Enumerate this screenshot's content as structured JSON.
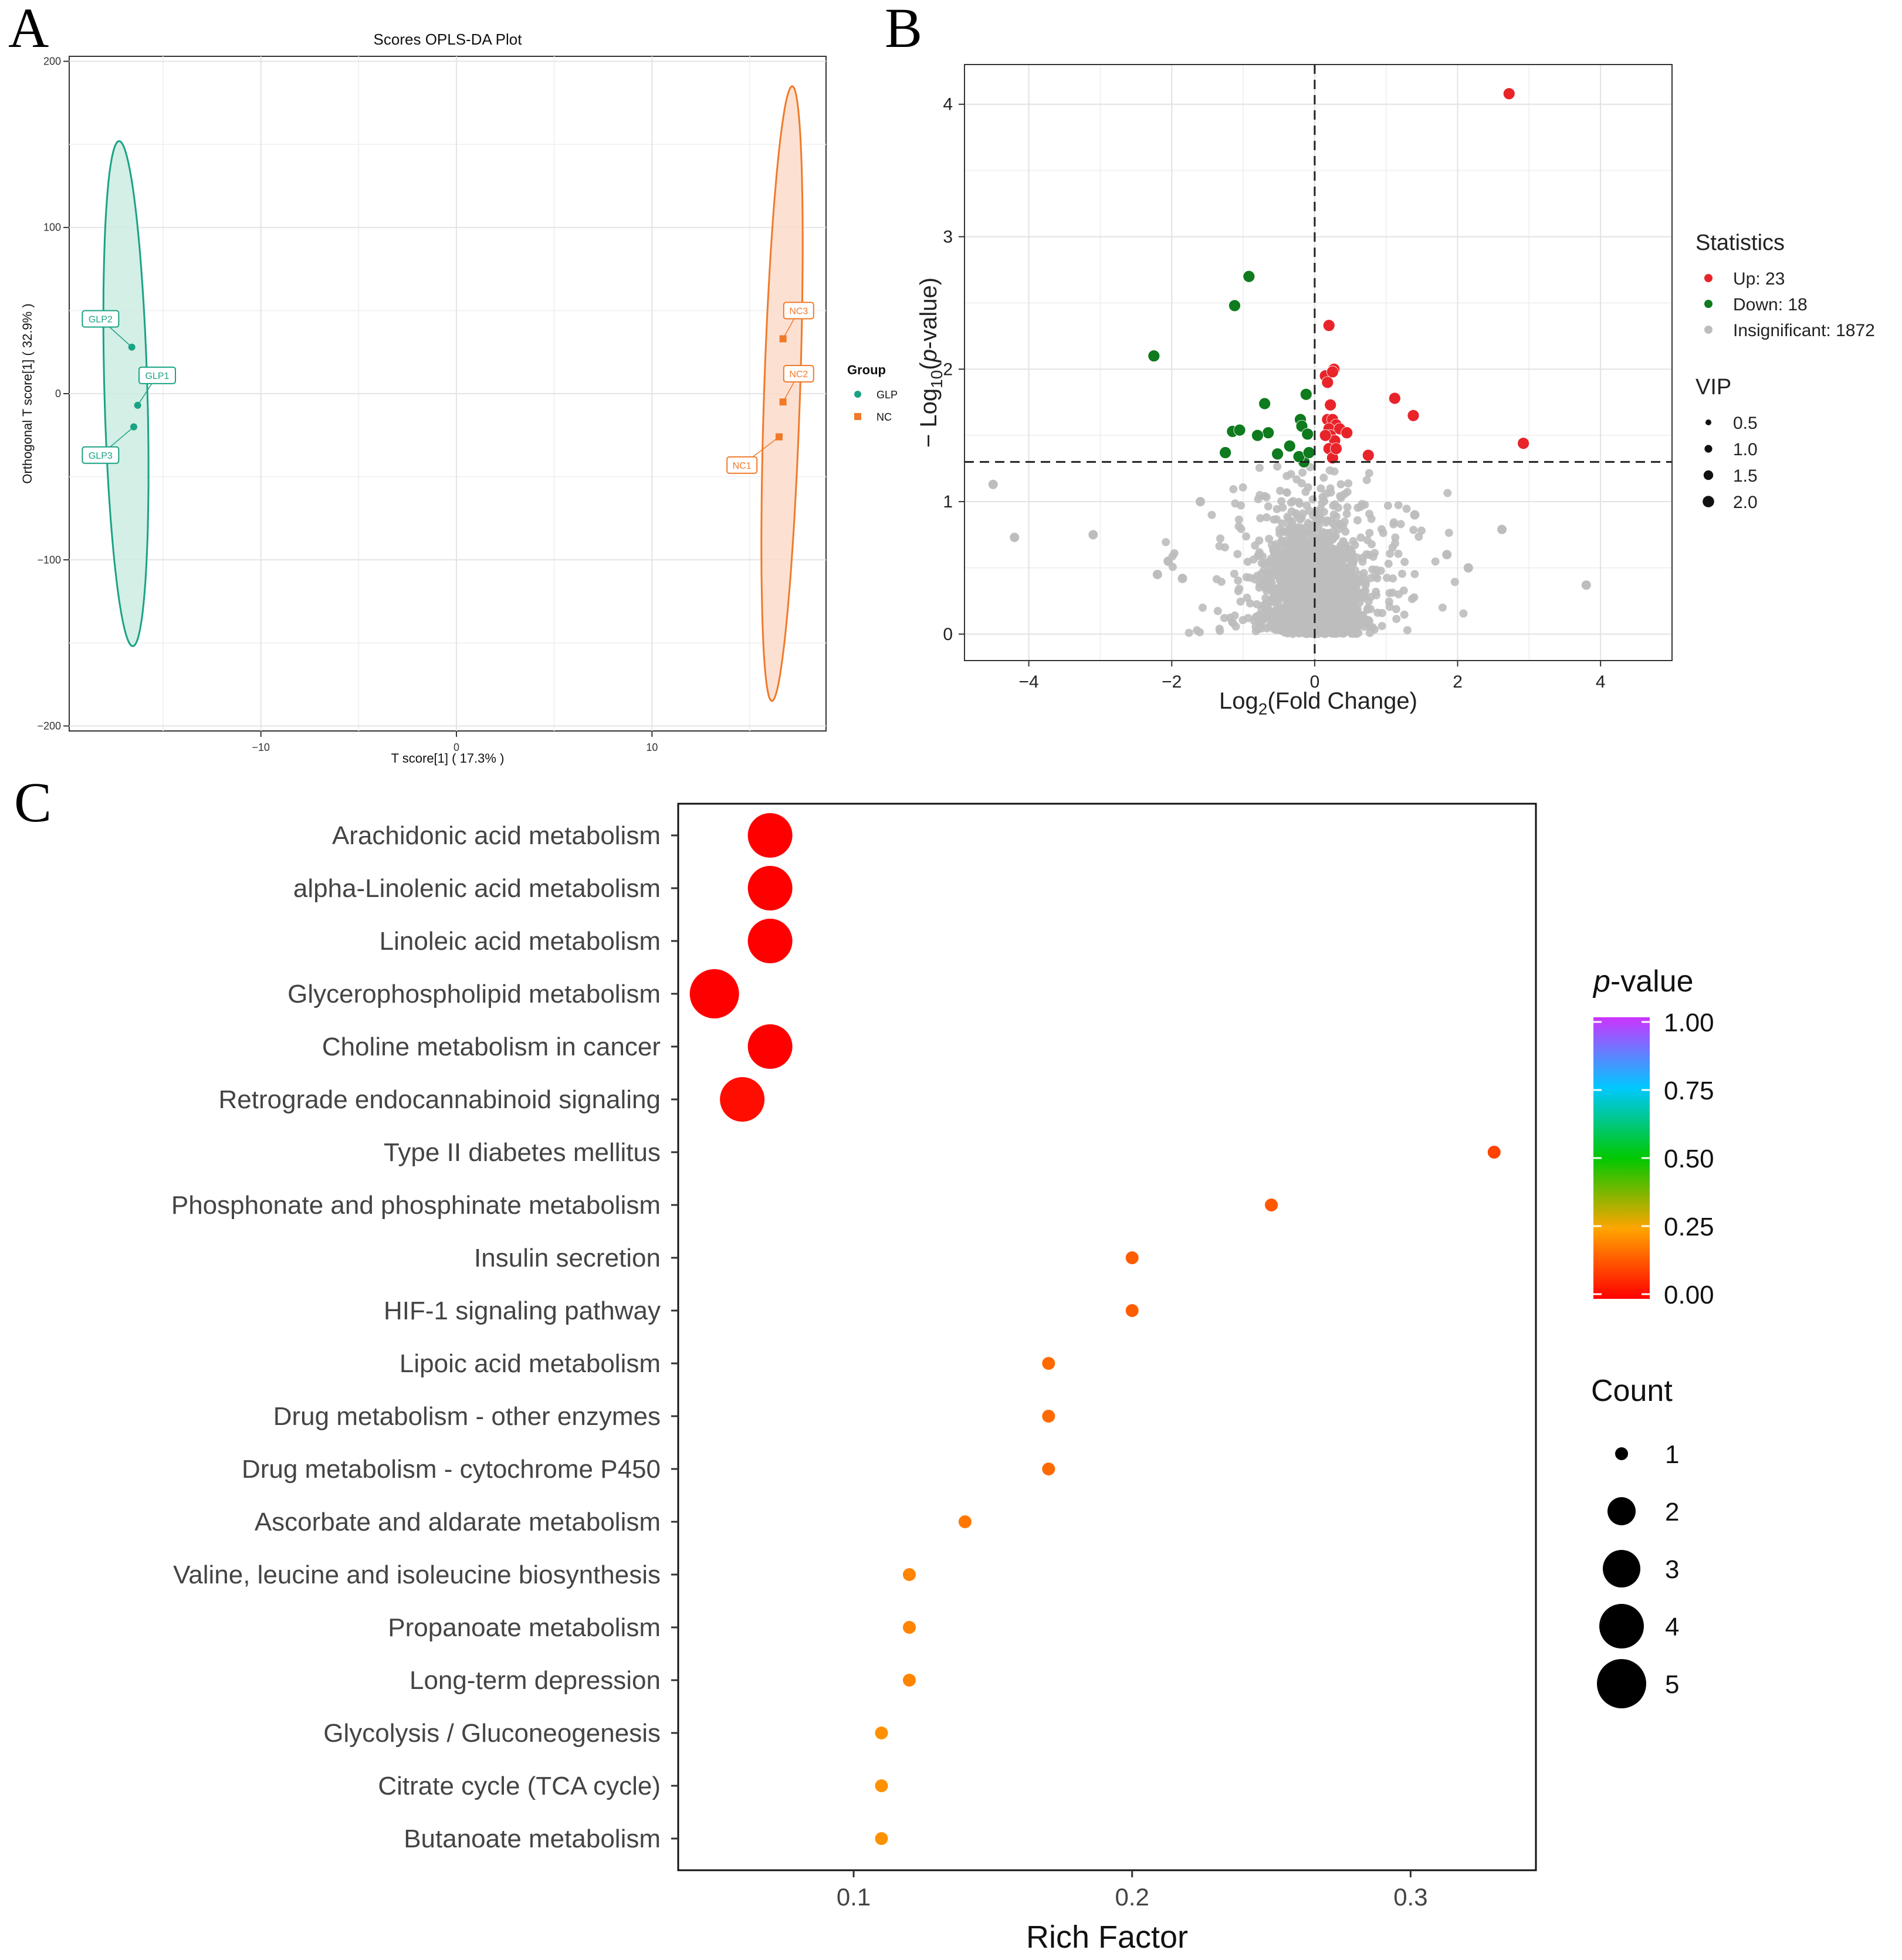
{
  "panels": {
    "a_letter": "A",
    "b_letter": "B",
    "c_letter": "C"
  },
  "chart_data": [
    {
      "type": "scatter",
      "id": "opls",
      "title": "Scores OPLS-DA Plot",
      "xlabel": "T score[1] ( 17.3% )",
      "ylabel": "Orthogonal T score[1] ( 32.9% )",
      "xlim": [
        -19.8,
        18.9
      ],
      "ylim": [
        -203,
        203
      ],
      "xticks": [
        -10,
        0,
        10
      ],
      "yticks": [
        -200,
        -100,
        0,
        100,
        200
      ],
      "xtick_labels": [
        "−10",
        "0",
        "10"
      ],
      "ytick_labels": [
        "−200",
        "−100",
        "0",
        "100",
        "200"
      ],
      "grid": true,
      "legend": {
        "title": "Group",
        "entries": [
          {
            "label": "GLP",
            "color": "#1aa384"
          },
          {
            "label": "NC",
            "color": "#f07a2a"
          }
        ],
        "placement": "right"
      },
      "series": [
        {
          "name": "GLP",
          "color": "#1aa384",
          "fill": "#cdece2",
          "points": [
            {
              "label": "GLP2",
              "x": -16.6,
              "y": 28,
              "lx": -18.2,
              "ly": 45
            },
            {
              "label": "GLP1",
              "x": -16.3,
              "y": -7,
              "lx": -15.3,
              "ly": 11
            },
            {
              "label": "GLP3",
              "x": -16.5,
              "y": -20,
              "lx": -18.2,
              "ly": -37
            }
          ],
          "ellipse": {
            "cx": -16.9,
            "cy": 0,
            "x_half": 1.1,
            "y_half": 152,
            "tilt": -0.0023
          }
        },
        {
          "name": "NC",
          "color": "#f07a2a",
          "fill": "#fbdccb",
          "points": [
            {
              "label": "NC3",
              "x": 16.7,
              "y": 33,
              "lx": 17.5,
              "ly": 50
            },
            {
              "label": "NC2",
              "x": 16.7,
              "y": -5,
              "lx": 17.5,
              "ly": 12
            },
            {
              "label": "NC1",
              "x": 16.5,
              "y": -26,
              "lx": 14.6,
              "ly": -43
            }
          ],
          "ellipse": {
            "cx": 16.65,
            "cy": 0,
            "x_half": 0.92,
            "y_half": 185,
            "tilt": 0.0028
          }
        }
      ]
    },
    {
      "type": "scatter",
      "id": "volcano",
      "title": "",
      "xlabel": "Log2(Fold Change)",
      "ylabel": "− Log10(p-value)",
      "xlim": [
        -4.9,
        5.0
      ],
      "ylim": [
        -0.2,
        4.3
      ],
      "xticks": [
        -4,
        -2,
        0,
        2,
        4
      ],
      "yticks": [
        0,
        1,
        2,
        3,
        4
      ],
      "xtick_labels": [
        "−4",
        "−2",
        "0",
        "2",
        "4"
      ],
      "ytick_labels": [
        "0",
        "1",
        "2",
        "3",
        "4"
      ],
      "thresholds": {
        "x": 0,
        "y": 1.3
      },
      "grid": true,
      "legend": {
        "statistics_title": "Statistics",
        "entries": [
          {
            "label": "Up: 23",
            "color": "#e8242a"
          },
          {
            "label": "Down: 18",
            "color": "#0f7a1e"
          },
          {
            "label": "Insignificant: 1872",
            "color": "#bdbdbd"
          }
        ],
        "vip_title": "VIP",
        "vip_entries": [
          "0.5",
          "1.0",
          "1.5",
          "2.0"
        ],
        "placement": "right"
      },
      "series": [
        {
          "name": "Up",
          "color": "#e8242a",
          "x": [
            2.72,
            0.2,
            0.15,
            0.27,
            0.18,
            0.22,
            1.12,
            1.38,
            2.92,
            0.18,
            0.25,
            0.3,
            0.2,
            0.35,
            0.45,
            0.22,
            0.28,
            0.2,
            0.15,
            0.25,
            0.3,
            0.75,
            0.25
          ],
          "y": [
            4.08,
            2.33,
            1.95,
            2.0,
            1.9,
            1.73,
            1.78,
            1.65,
            1.44,
            1.62,
            1.62,
            1.58,
            1.55,
            1.55,
            1.52,
            1.5,
            1.46,
            1.4,
            1.5,
            1.33,
            1.4,
            1.35,
            1.98
          ]
        },
        {
          "name": "Down",
          "color": "#0f7a1e",
          "x": [
            -0.92,
            -1.12,
            -2.25,
            -0.7,
            -0.12,
            -1.15,
            -1.05,
            -0.65,
            -0.8,
            -0.2,
            -0.18,
            -0.1,
            -0.35,
            -0.52,
            -0.15,
            -1.25,
            -0.22,
            -0.08
          ],
          "y": [
            2.7,
            2.48,
            2.1,
            1.74,
            1.81,
            1.53,
            1.54,
            1.52,
            1.5,
            1.62,
            1.57,
            1.51,
            1.42,
            1.36,
            1.3,
            1.37,
            1.34,
            1.37
          ]
        },
        {
          "name": "Insignificant",
          "color": "#bdbdbd",
          "count": 1872
        }
      ]
    },
    {
      "type": "scatter",
      "id": "enrichment",
      "title": "",
      "xlabel": "Rich Factor",
      "ylabel": "",
      "xlim": [
        0.037,
        0.345
      ],
      "xticks": [
        0.1,
        0.2,
        0.3
      ],
      "xtick_labels": [
        "0.1",
        "0.2",
        "0.3"
      ],
      "categories": [
        "Arachidonic acid metabolism",
        "alpha-Linolenic acid metabolism",
        "Linoleic acid metabolism",
        "Glycerophospholipid metabolism",
        "Choline metabolism in cancer",
        "Retrograde endocannabinoid signaling",
        "Type II diabetes mellitus",
        "Phosphonate and phosphinate metabolism",
        "Insulin secretion",
        "HIF-1 signaling pathway",
        "Lipoic acid metabolism",
        "Drug metabolism - other enzymes",
        "Drug metabolism - cytochrome P450",
        "Ascorbate and aldarate metabolism",
        "Valine, leucine and isoleucine biosynthesis",
        "Propanoate metabolism",
        "Long-term depression",
        "Glycolysis / Gluconeogenesis",
        "Citrate cycle (TCA cycle)",
        "Butanoate metabolism"
      ],
      "rich_factor": [
        0.07,
        0.07,
        0.07,
        0.05,
        0.07,
        0.06,
        0.33,
        0.25,
        0.2,
        0.2,
        0.17,
        0.17,
        0.17,
        0.14,
        0.12,
        0.12,
        0.12,
        0.11,
        0.11,
        0.11
      ],
      "count": [
        4,
        4,
        4,
        5,
        4,
        4,
        1,
        1,
        1,
        1,
        1,
        1,
        1,
        1,
        1,
        1,
        1,
        1,
        1,
        1
      ],
      "p_value": [
        0.0,
        0.0,
        0.0,
        0.0,
        0.0,
        0.02,
        0.1,
        0.13,
        0.14,
        0.14,
        0.16,
        0.16,
        0.16,
        0.18,
        0.2,
        0.2,
        0.2,
        0.22,
        0.22,
        0.22
      ],
      "legend": {
        "pvalue_title_italic": "p",
        "pvalue_title_rest": "-value",
        "pvalue_ticks": [
          "1.00",
          "0.75",
          "0.50",
          "0.25",
          "0.00"
        ],
        "count_title": "Count",
        "count_ticks": [
          "1",
          "2",
          "3",
          "4",
          "5"
        ],
        "placement": "right"
      }
    }
  ]
}
